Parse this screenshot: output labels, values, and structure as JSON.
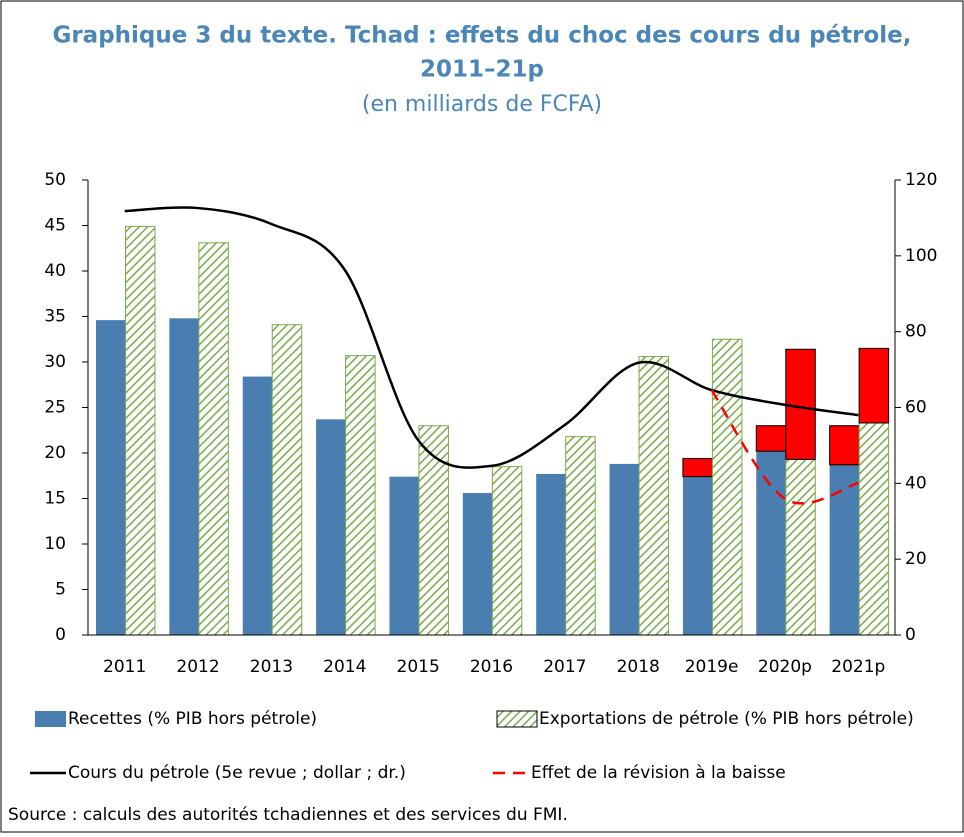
{
  "chart_data": {
    "type": "bar",
    "title": [
      "Graphique 3 du texte. Tchad : effets du choc des cours du pétrole,",
      "2011–21p"
    ],
    "subtitle": "(en milliards de FCFA)",
    "categories": [
      "2011",
      "2012",
      "2013",
      "2014",
      "2015",
      "2016",
      "2017",
      "2018",
      "2019e",
      "2020p",
      "2021p"
    ],
    "ylim": [
      0,
      50
    ],
    "yticks": [
      0,
      5,
      10,
      15,
      20,
      25,
      30,
      35,
      40,
      45,
      50
    ],
    "y2lim": [
      0,
      120
    ],
    "y2ticks": [
      0,
      20,
      40,
      60,
      80,
      100,
      120
    ],
    "series": [
      {
        "name": "Recettes (% PIB hors pétrole)",
        "type": "bar",
        "color": "#4a7eb0",
        "values": [
          34.6,
          34.8,
          28.4,
          23.7,
          17.4,
          15.6,
          17.7,
          18.8,
          17.4,
          20.2,
          18.7
        ],
        "revision": [
          null,
          null,
          null,
          null,
          null,
          null,
          null,
          null,
          2.0,
          2.8,
          4.3
        ],
        "revision_color": "#ff0000"
      },
      {
        "name": "Exportations de pétrole (% PIB hors pétrole)",
        "type": "bar",
        "color": "#7aaa4a",
        "pattern": "hatch",
        "values": [
          44.9,
          43.1,
          34.1,
          30.7,
          23.0,
          18.5,
          21.8,
          30.6,
          32.5,
          19.3,
          23.3
        ],
        "revision": [
          null,
          null,
          null,
          null,
          null,
          null,
          null,
          null,
          null,
          12.1,
          8.2
        ],
        "revision_color": "#ff0000"
      },
      {
        "name": "Cours du pétrole (5e revue ; dollar ; dr.)",
        "type": "line",
        "axis": "y2",
        "color": "#000000",
        "values": [
          111.8,
          112.6,
          108.4,
          96.3,
          51.4,
          44.6,
          55.4,
          71.8,
          64.6,
          60.7,
          58.0
        ]
      },
      {
        "name": "Effet de la révision à la baisse",
        "type": "line",
        "axis": "y2",
        "color": "#ff0000",
        "dashed": true,
        "values": [
          null,
          null,
          null,
          null,
          null,
          null,
          null,
          null,
          64.6,
          35.9,
          40.1
        ]
      }
    ],
    "source": "Source : calculs des autorités tchadiennes et des services du FMI."
  }
}
